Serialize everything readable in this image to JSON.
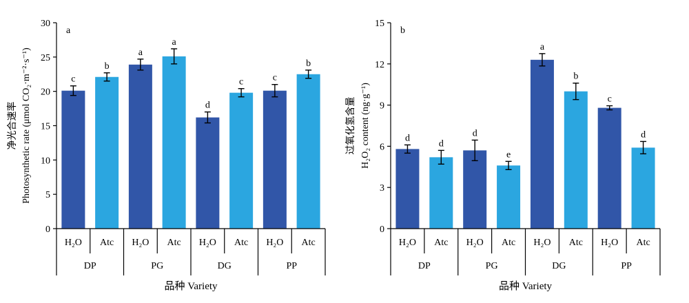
{
  "colors": {
    "H2O": "#3156a8",
    "Atc": "#2ba6e0",
    "axis": "#000000"
  },
  "xlabel": "品种 Variety",
  "varieties": [
    "DP",
    "PG",
    "DG",
    "PP"
  ],
  "treatments": [
    "H₂O",
    "Atc"
  ],
  "chart_data": [
    {
      "type": "bar",
      "panel_label": "a",
      "ylabel_cn": "净光合速率",
      "ylabel_en": "Photosynthetic rate (μmol CO₂·m⁻²·s⁻¹)",
      "ylim": [
        0,
        30
      ],
      "yticks": [
        0,
        5,
        10,
        15,
        20,
        25,
        30
      ],
      "categories": [
        "DP",
        "PG",
        "DG",
        "PP"
      ],
      "series": [
        {
          "name": "H₂O",
          "values": [
            20.1,
            23.9,
            16.2,
            20.1
          ],
          "errors": [
            0.7,
            0.8,
            0.8,
            0.9
          ],
          "letters": [
            "c",
            "a",
            "d",
            "c"
          ]
        },
        {
          "name": "Atc",
          "values": [
            22.1,
            25.1,
            19.8,
            22.5
          ],
          "errors": [
            0.6,
            1.1,
            0.6,
            0.6
          ],
          "letters": [
            "b",
            "a",
            "c",
            "b"
          ]
        }
      ]
    },
    {
      "type": "bar",
      "panel_label": "b",
      "ylabel_cn": "过氧化氢含量",
      "ylabel_en": "H₂O₂ content (ng·g⁻¹)",
      "ylim": [
        0,
        15
      ],
      "yticks": [
        0,
        3,
        6,
        9,
        12,
        15
      ],
      "categories": [
        "DP",
        "PG",
        "DG",
        "PP"
      ],
      "series": [
        {
          "name": "H₂O",
          "values": [
            5.8,
            5.7,
            12.3,
            8.8
          ],
          "errors": [
            0.3,
            0.75,
            0.45,
            0.15
          ],
          "letters": [
            "d",
            "d",
            "a",
            "c"
          ]
        },
        {
          "name": "Atc",
          "values": [
            5.2,
            4.6,
            10.0,
            5.9
          ],
          "errors": [
            0.5,
            0.3,
            0.6,
            0.45
          ],
          "letters": [
            "d",
            "e",
            "b",
            "d"
          ]
        }
      ]
    }
  ]
}
